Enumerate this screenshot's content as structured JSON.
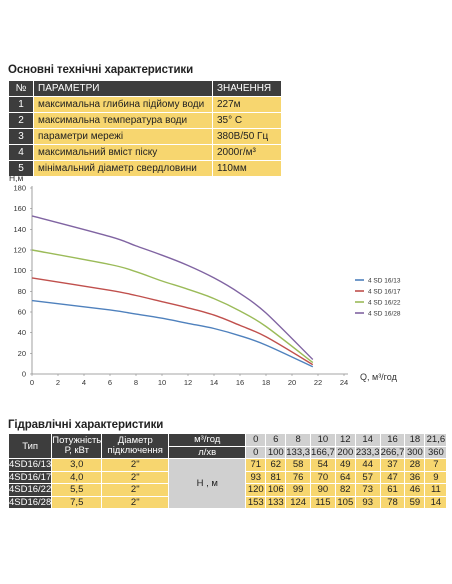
{
  "spec": {
    "title": "Основні технічні характеристики",
    "header": {
      "num": "№",
      "param": "ПАРАМЕТРИ",
      "value": "ЗНАЧЕННЯ"
    },
    "rows": [
      {
        "n": "1",
        "param": "максимальна глибина підйому води",
        "value": "227м"
      },
      {
        "n": "2",
        "param": "максимальна температура води",
        "value": "35° С"
      },
      {
        "n": "3",
        "param": "параметри мережі",
        "value": "380В/50 Гц"
      },
      {
        "n": "4",
        "param": "максимальний вміст піску",
        "value": "2000г/м³"
      },
      {
        "n": "5",
        "param": "мінімальний діаметр свердловини",
        "value": "110мм"
      }
    ]
  },
  "hydraulics": {
    "title": "Гідравлічні характеристики",
    "head": {
      "type": "Тип",
      "power": "Потужність Р, кВт",
      "diameter": "Діаметр підключення",
      "unit_m3": "м³/год",
      "unit_lmin": "л/хв",
      "head_label": "Н , м"
    },
    "flow_m3h": [
      "0",
      "6",
      "8",
      "10",
      "12",
      "14",
      "16",
      "18",
      "21,6"
    ],
    "flow_lmin": [
      "0",
      "100",
      "133,3",
      "166,7",
      "200",
      "233,3",
      "266,7",
      "300",
      "360"
    ],
    "models": [
      {
        "type": "4SD16/13",
        "power": "3,0",
        "diameter": "2\"",
        "heads": [
          "71",
          "62",
          "58",
          "54",
          "49",
          "44",
          "37",
          "28",
          "7"
        ]
      },
      {
        "type": "4SD16/17",
        "power": "4,0",
        "diameter": "2\"",
        "heads": [
          "93",
          "81",
          "76",
          "70",
          "64",
          "57",
          "47",
          "36",
          "9"
        ]
      },
      {
        "type": "4SD16/22",
        "power": "5,5",
        "diameter": "2\"",
        "heads": [
          "120",
          "106",
          "99",
          "90",
          "82",
          "73",
          "61",
          "46",
          "11"
        ]
      },
      {
        "type": "4SD16/28",
        "power": "7,5",
        "diameter": "2\"",
        "heads": [
          "153",
          "133",
          "124",
          "115",
          "105",
          "93",
          "78",
          "59",
          "14"
        ]
      }
    ]
  },
  "chart_data": {
    "type": "line",
    "xlabel": "Q, м³/год",
    "ylabel": "Н,м",
    "xlim": [
      0,
      24
    ],
    "ylim": [
      0,
      180
    ],
    "xticks": [
      "0",
      "2",
      "4",
      "6",
      "8",
      "10",
      "12",
      "14",
      "16",
      "18",
      "20",
      "22",
      "24"
    ],
    "yticks": [
      "0",
      "20",
      "40",
      "60",
      "80",
      "100",
      "120",
      "140",
      "160",
      "180"
    ],
    "grid": false,
    "legend_position": "right",
    "series": [
      {
        "name": "4 SD 16/13",
        "color": "#4f81bd",
        "x": [
          0,
          6,
          8,
          10,
          12,
          14,
          16,
          18,
          21.6
        ],
        "y": [
          71,
          62,
          58,
          54,
          49,
          44,
          37,
          28,
          7
        ]
      },
      {
        "name": "4 SD 16/17",
        "color": "#c0504d",
        "x": [
          0,
          6,
          8,
          10,
          12,
          14,
          16,
          18,
          21.6
        ],
        "y": [
          93,
          81,
          76,
          70,
          64,
          57,
          47,
          36,
          9
        ]
      },
      {
        "name": "4 SD 16/22",
        "color": "#9bbb59",
        "x": [
          0,
          6,
          8,
          10,
          12,
          14,
          16,
          18,
          21.6
        ],
        "y": [
          120,
          106,
          99,
          90,
          82,
          73,
          61,
          46,
          11
        ]
      },
      {
        "name": "4 SD 16/28",
        "color": "#8064a2",
        "x": [
          0,
          6,
          8,
          10,
          12,
          14,
          16,
          18,
          21.6
        ],
        "y": [
          153,
          133,
          124,
          115,
          105,
          93,
          78,
          59,
          14
        ]
      }
    ]
  }
}
